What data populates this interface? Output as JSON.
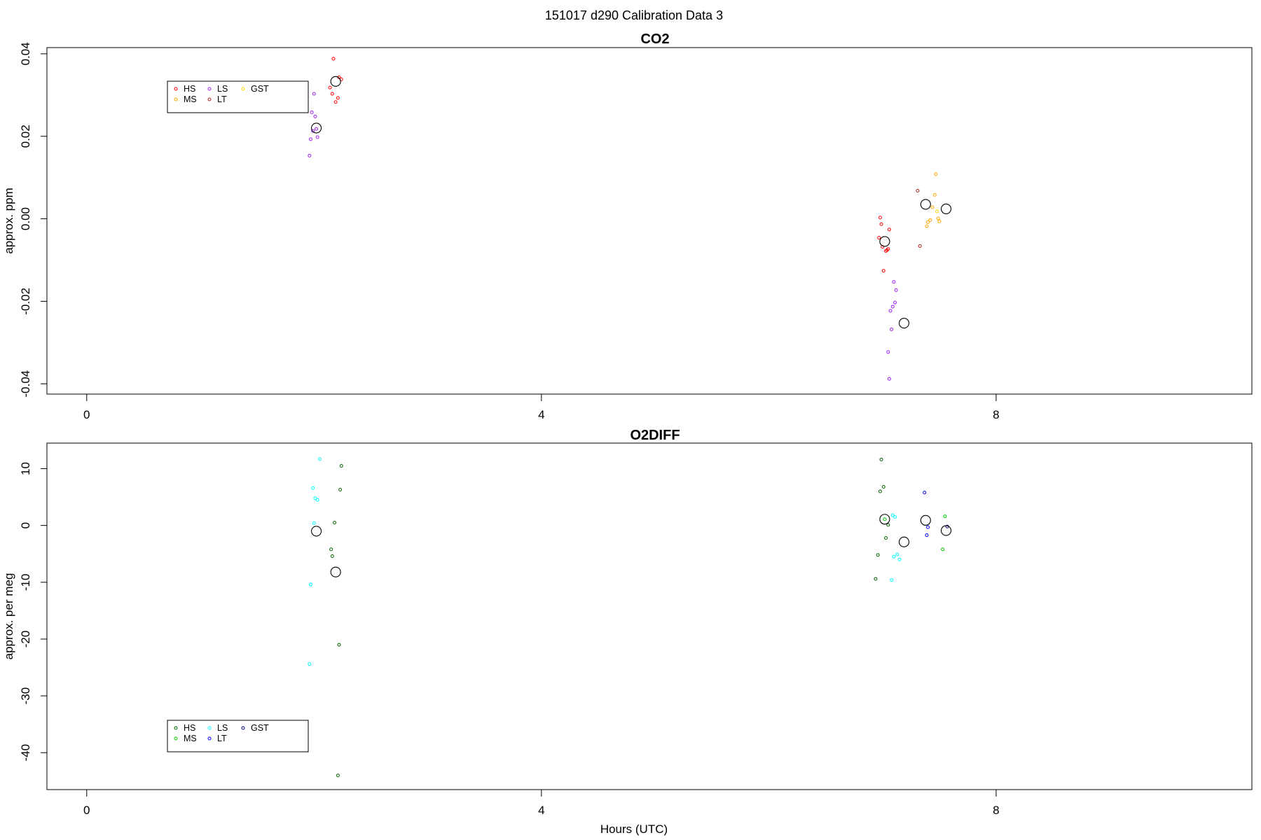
{
  "figure": {
    "title": "151017   d290   Calibration Data 3",
    "xlabel": "Hours (UTC)"
  },
  "chart_data": [
    {
      "type": "scatter",
      "title": "CO2",
      "xlabel": "",
      "ylabel": "approx. ppm",
      "xlim": [
        -0.35,
        10.25
      ],
      "ylim": [
        -0.0425,
        0.0415
      ],
      "x_ticks": [
        0,
        4,
        8
      ],
      "y_ticks": [
        -0.04,
        -0.02,
        0.0,
        0.02,
        0.04
      ],
      "y_tick_labels": [
        "-0.04",
        "-0.02",
        "0.00",
        "0.02",
        "0.04"
      ],
      "grid": false,
      "legend": {
        "position": "top-left",
        "entries": [
          {
            "name": "HS",
            "color": "#ff0000"
          },
          {
            "name": "MS",
            "color": "#ffa500"
          },
          {
            "name": "LS",
            "color": "#a020f0"
          },
          {
            "name": "LT",
            "color": "#b22222"
          },
          {
            "name": "GST",
            "color": "#ffd700"
          }
        ]
      },
      "series": [
        {
          "name": "HS",
          "color": "#ff0000",
          "points": [
            [
              2.14,
              0.0318
            ],
            [
              2.16,
              0.0303
            ],
            [
              2.19,
              0.0283
            ],
            [
              2.21,
              0.0293
            ],
            [
              2.22,
              0.0343
            ],
            [
              2.24,
              0.0338
            ],
            [
              2.17,
              0.0388
            ],
            [
              6.98,
              0.0003
            ],
            [
              6.99,
              -0.0013
            ],
            [
              7.0,
              -0.0068
            ],
            [
              7.03,
              -0.0078
            ],
            [
              7.05,
              -0.0073
            ],
            [
              7.06,
              -0.0026
            ],
            [
              6.97,
              -0.0046
            ],
            [
              7.01,
              -0.0126
            ],
            [
              7.04,
              -0.0076
            ]
          ]
        },
        {
          "name": "MS",
          "color": "#ffa500",
          "points": [
            [
              7.47,
              0.0108
            ],
            [
              7.46,
              0.0058
            ],
            [
              7.44,
              0.0028
            ],
            [
              7.42,
              -0.0003
            ],
            [
              7.4,
              -0.0008
            ],
            [
              7.39,
              -0.0018
            ],
            [
              7.49,
              0.0001
            ],
            [
              7.5,
              -0.0006
            ]
          ]
        },
        {
          "name": "LS",
          "color": "#a020f0",
          "points": [
            [
              1.98,
              0.0258
            ],
            [
              2.0,
              0.0303
            ],
            [
              2.01,
              0.0248
            ],
            [
              2.02,
              0.0218
            ],
            [
              2.03,
              0.0198
            ],
            [
              1.97,
              0.0193
            ],
            [
              1.96,
              0.0153
            ],
            [
              1.99,
              0.0213
            ],
            [
              7.1,
              -0.0153
            ],
            [
              7.12,
              -0.0173
            ],
            [
              7.11,
              -0.0203
            ],
            [
              7.09,
              -0.0213
            ],
            [
              7.07,
              -0.0223
            ],
            [
              7.08,
              -0.0268
            ],
            [
              7.05,
              -0.0323
            ],
            [
              7.06,
              -0.0388
            ]
          ]
        },
        {
          "name": "LT",
          "color": "#b22222",
          "points": [
            [
              7.31,
              0.0068
            ],
            [
              7.33,
              -0.0066
            ]
          ]
        },
        {
          "name": "GST",
          "color": "#ffd700",
          "points": [
            [
              7.48,
              0.0018
            ]
          ]
        },
        {
          "name": "means",
          "color": "#000000",
          "big": true,
          "points": [
            [
              2.02,
              0.022
            ],
            [
              2.19,
              0.0333
            ],
            [
              7.02,
              -0.0055
            ],
            [
              7.19,
              -0.0253
            ],
            [
              7.38,
              0.0035
            ],
            [
              7.56,
              0.0024
            ]
          ]
        }
      ]
    },
    {
      "type": "scatter",
      "title": "O2DIFF",
      "xlabel": "",
      "ylabel": "approx. per meg",
      "xlim": [
        -0.35,
        10.25
      ],
      "ylim": [
        -46.5,
        14.5
      ],
      "x_ticks": [
        0,
        4,
        8
      ],
      "y_ticks": [
        -40,
        -30,
        -20,
        -10,
        0,
        10
      ],
      "y_tick_labels": [
        "-40",
        "-30",
        "-20",
        "-10",
        "0",
        "10"
      ],
      "grid": false,
      "legend": {
        "position": "bottom-left",
        "entries": [
          {
            "name": "HS",
            "color": "#006400"
          },
          {
            "name": "MS",
            "color": "#00cd00"
          },
          {
            "name": "LS",
            "color": "#00ffff"
          },
          {
            "name": "LT",
            "color": "#0000ff"
          },
          {
            "name": "GST",
            "color": "#00008b"
          }
        ]
      },
      "series": [
        {
          "name": "HS",
          "color": "#006400",
          "points": [
            [
              2.24,
              10.5
            ],
            [
              2.23,
              6.3
            ],
            [
              2.18,
              0.5
            ],
            [
              2.15,
              -4.2
            ],
            [
              2.16,
              -5.4
            ],
            [
              2.22,
              -21.0
            ],
            [
              2.21,
              -44.0
            ],
            [
              6.99,
              11.6
            ],
            [
              7.01,
              6.8
            ],
            [
              6.98,
              6.0
            ],
            [
              7.05,
              0.1
            ],
            [
              7.03,
              -2.2
            ],
            [
              6.96,
              -5.2
            ],
            [
              6.94,
              -9.4
            ]
          ]
        },
        {
          "name": "MS",
          "color": "#00cd00",
          "points": [
            [
              7.55,
              1.6
            ],
            [
              7.53,
              -4.2
            ],
            [
              7.02,
              1.1
            ]
          ]
        },
        {
          "name": "LS",
          "color": "#00ffff",
          "points": [
            [
              2.05,
              11.7
            ],
            [
              1.99,
              6.6
            ],
            [
              2.01,
              4.8
            ],
            [
              2.03,
              4.5
            ],
            [
              2.0,
              0.4
            ],
            [
              1.97,
              -10.4
            ],
            [
              1.96,
              -24.4
            ],
            [
              7.09,
              1.8
            ],
            [
              7.11,
              1.5
            ],
            [
              7.13,
              -5.1
            ],
            [
              7.1,
              -5.5
            ],
            [
              7.15,
              -6.0
            ],
            [
              7.08,
              -9.6
            ]
          ]
        },
        {
          "name": "LT",
          "color": "#0000ff",
          "points": [
            [
              7.37,
              5.8
            ],
            [
              7.4,
              -0.3
            ],
            [
              7.39,
              -1.7
            ]
          ]
        },
        {
          "name": "GST",
          "color": "#00008b",
          "points": [
            [
              7.57,
              -0.2
            ]
          ]
        },
        {
          "name": "means",
          "color": "#000000",
          "big": true,
          "points": [
            [
              2.02,
              -1.0
            ],
            [
              2.19,
              -8.2
            ],
            [
              7.02,
              1.1
            ],
            [
              7.19,
              -2.9
            ],
            [
              7.38,
              0.9
            ],
            [
              7.56,
              -0.9
            ]
          ]
        }
      ]
    }
  ]
}
